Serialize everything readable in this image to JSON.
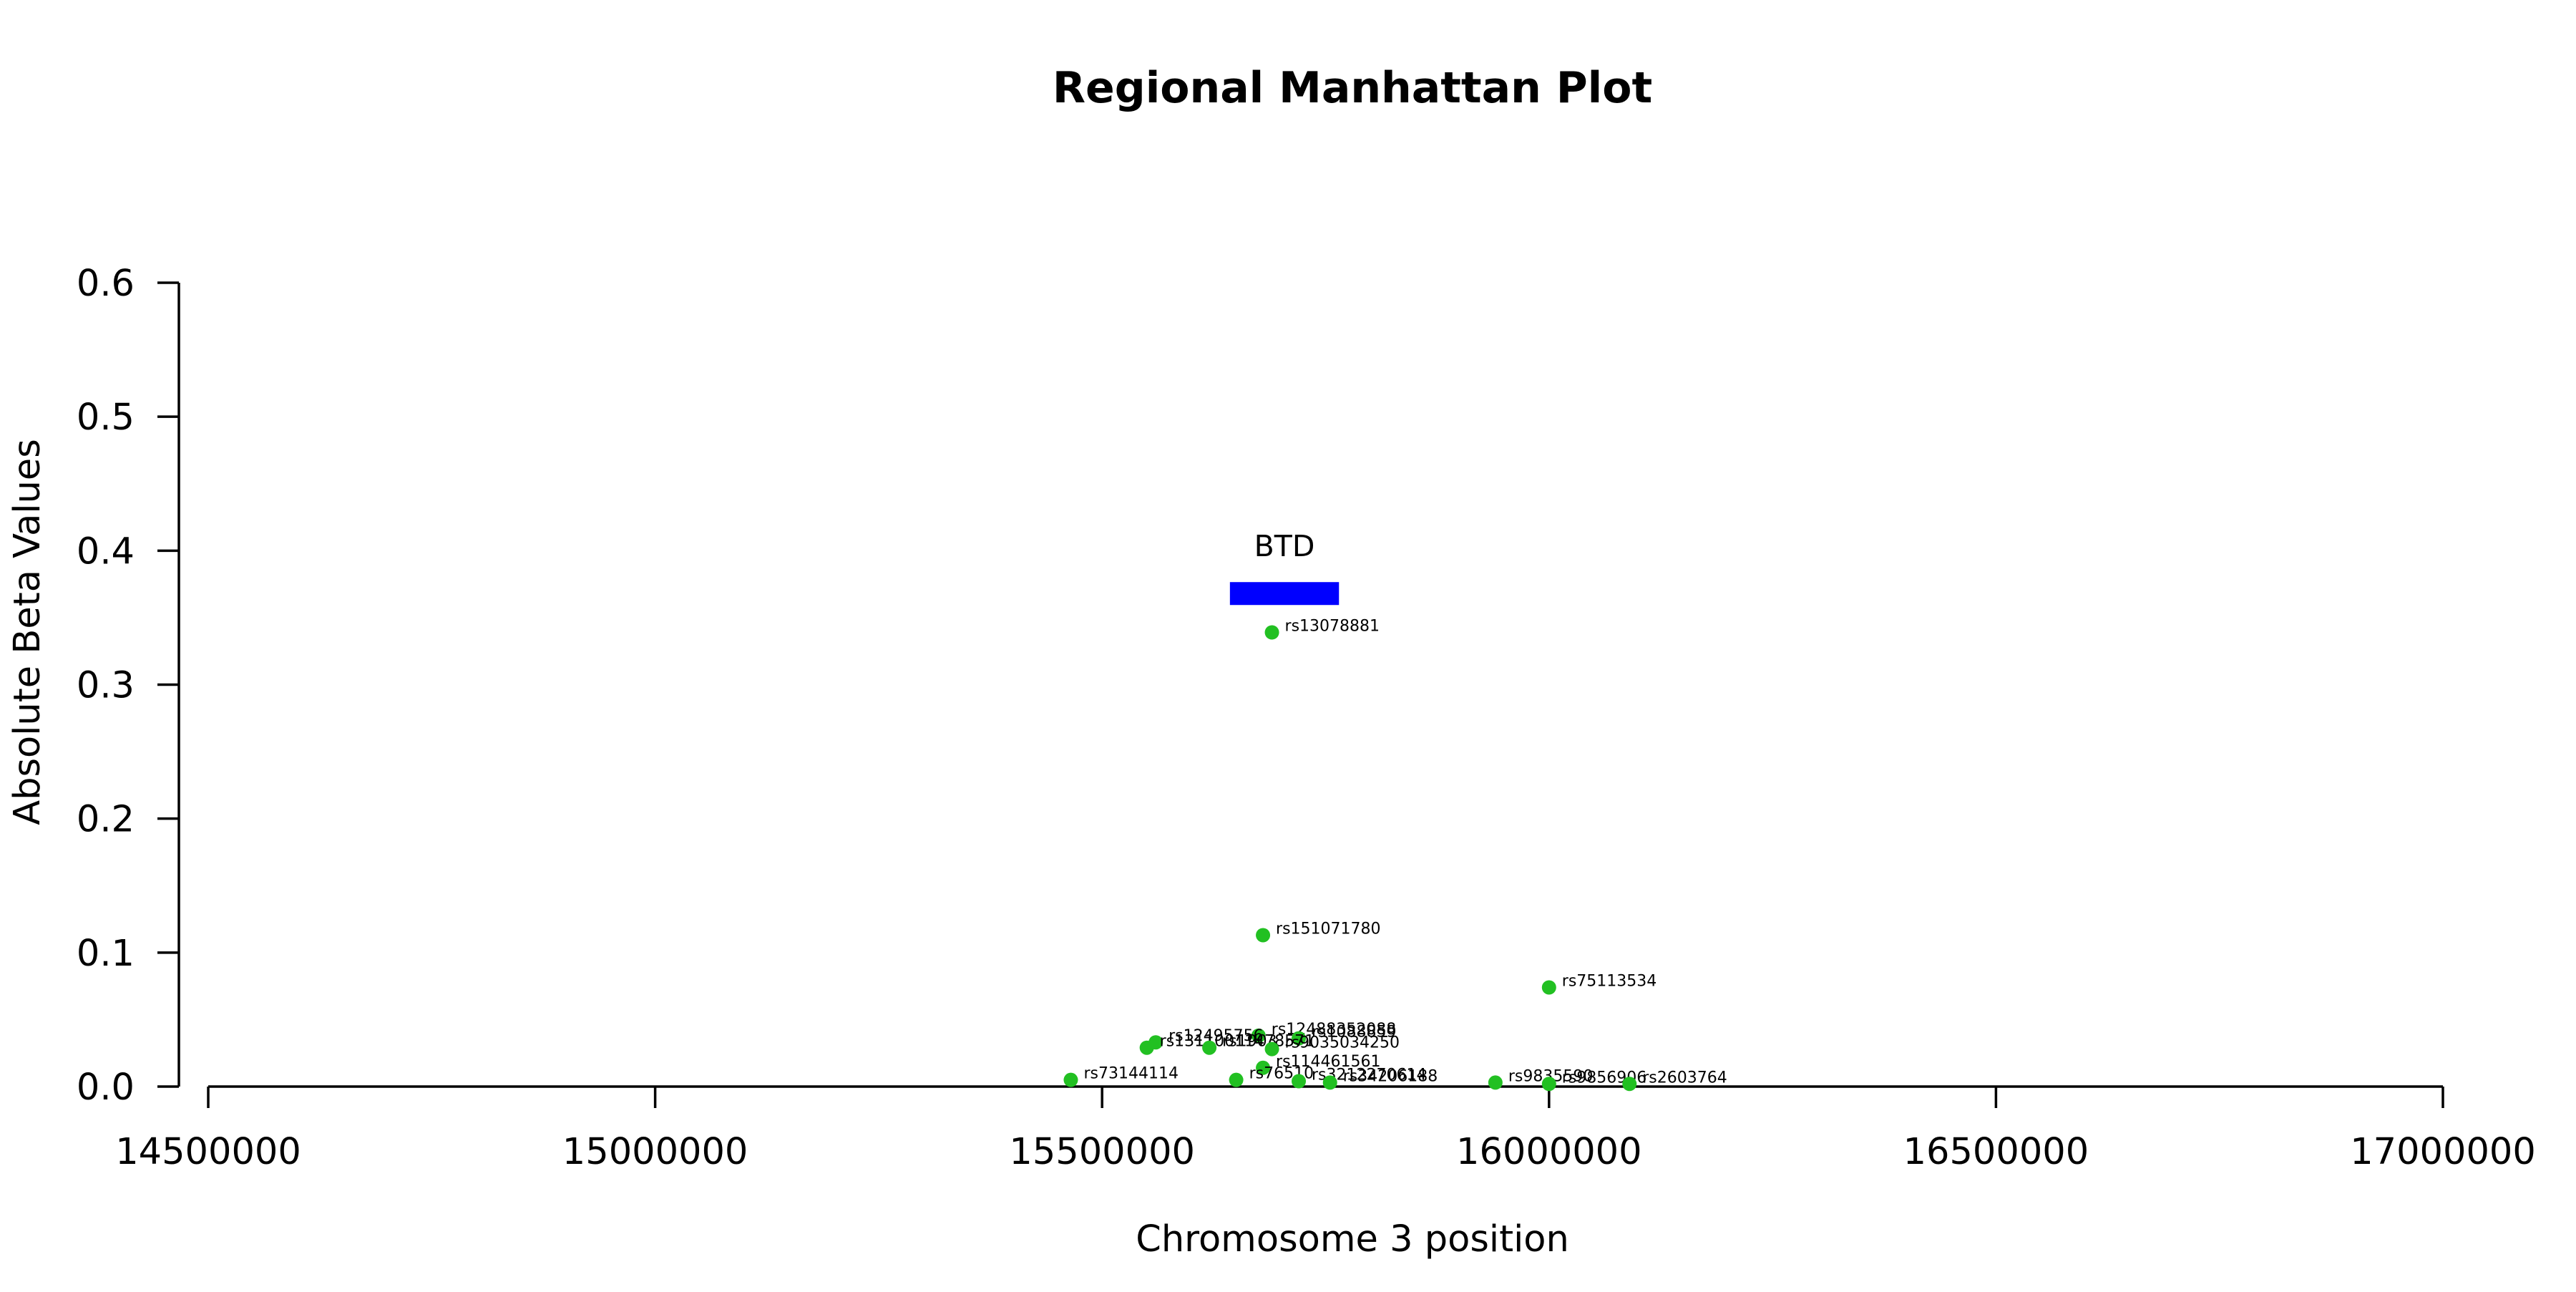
{
  "chart_data": {
    "type": "scatter",
    "title": "Regional Manhattan Plot",
    "xlabel": "Chromosome 3 position",
    "ylabel": "Absolute Beta Values",
    "xlim": [
      14500000,
      17000000
    ],
    "ylim": [
      0,
      0.6
    ],
    "x_ticks": [
      "14500000",
      "15000000",
      "15500000",
      "16000000",
      "16500000",
      "17000000"
    ],
    "y_ticks": [
      "0.0",
      "0.1",
      "0.2",
      "0.3",
      "0.4",
      "0.5",
      "0.6"
    ],
    "x_tick_values": [
      14500000,
      15000000,
      15500000,
      16000000,
      16500000,
      17000000
    ],
    "y_tick_values": [
      0,
      0.1,
      0.2,
      0.3,
      0.4,
      0.5,
      0.6
    ],
    "grid": false,
    "point_color": "#22c022",
    "points": [
      {
        "label": "rs13078881",
        "x": 15690000,
        "y": 0.339
      },
      {
        "label": "rs151071780",
        "x": 15680000,
        "y": 0.113
      },
      {
        "label": "rs75113534",
        "x": 16000000,
        "y": 0.074
      },
      {
        "label": "rs12488352088",
        "x": 15675000,
        "y": 0.038
      },
      {
        "label": "rs12495756",
        "x": 15560000,
        "y": 0.033
      },
      {
        "label": "rs1088859",
        "x": 15720000,
        "y": 0.036
      },
      {
        "label": "rs13110011478571",
        "x": 15550000,
        "y": 0.029
      },
      {
        "label": "rs1903",
        "x": 15620000,
        "y": 0.029
      },
      {
        "label": "rs9035034250",
        "x": 15690000,
        "y": 0.028
      },
      {
        "label": "rs114461561",
        "x": 15680000,
        "y": 0.014
      },
      {
        "label": "rs73144114",
        "x": 15465000,
        "y": 0.005
      },
      {
        "label": "rs76510",
        "x": 15650000,
        "y": 0.005
      },
      {
        "label": "rs3212270614",
        "x": 15720000,
        "y": 0.004
      },
      {
        "label": "rs34206188",
        "x": 15755000,
        "y": 0.003
      },
      {
        "label": "rs9835590",
        "x": 15940000,
        "y": 0.003
      },
      {
        "label": "rs9856906",
        "x": 16000000,
        "y": 0.002
      },
      {
        "label": "rs2603764",
        "x": 16090000,
        "y": 0.002
      }
    ],
    "gene": {
      "name": "BTD",
      "start": 15643000,
      "end": 15765000,
      "y": 0.368,
      "color": "#0000ff"
    }
  }
}
